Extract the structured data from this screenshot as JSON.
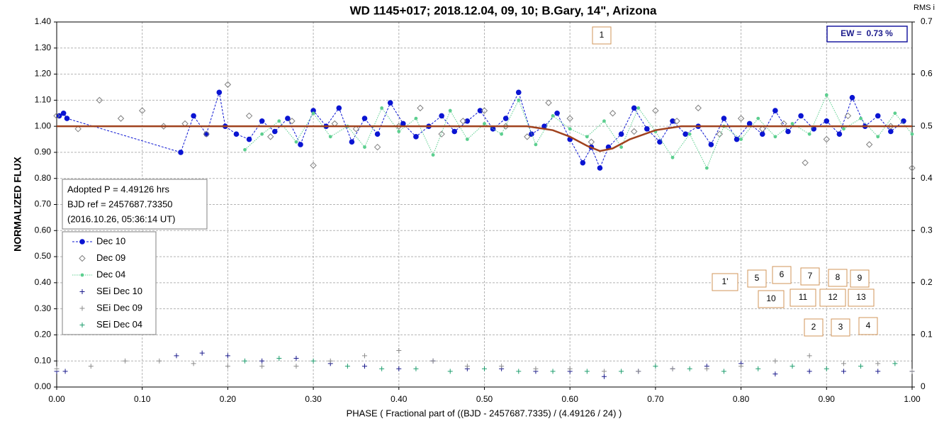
{
  "chart_data": {
    "type": "scatter",
    "title": "WD 1145+017; 2018.12.04, 09, 10; B.Gary, 14\", Arizona",
    "x_label": "PHASE ( Fractional part of ((BJD - 2457687.7335) / (4.49126 / 24) )",
    "y_label": "NORMALIZED FLUX",
    "y2_label": "RMS i",
    "xlim": [
      0,
      1
    ],
    "ylim": [
      0,
      1.4
    ],
    "y2lim": [
      0,
      0.7
    ],
    "grid": true,
    "xticks": [
      {
        "value": 0,
        "label": "0.00"
      },
      {
        "value": 0.1,
        "label": "0.10"
      },
      {
        "value": 0.2,
        "label": "0.20"
      },
      {
        "value": 0.3,
        "label": "0.30"
      },
      {
        "value": 0.4,
        "label": "0.40"
      },
      {
        "value": 0.5,
        "label": "0.50"
      },
      {
        "value": 0.6,
        "label": "0.60"
      },
      {
        "value": 0.7,
        "label": "0.70"
      },
      {
        "value": 0.8,
        "label": "0.80"
      },
      {
        "value": 0.9,
        "label": "0.90"
      },
      {
        "value": 1,
        "label": "1.00"
      }
    ],
    "yticks": [
      {
        "value": 0,
        "label": "0.00"
      },
      {
        "value": 0.1,
        "label": "0.10"
      },
      {
        "value": 0.2,
        "label": "0.20"
      },
      {
        "value": 0.3,
        "label": "0.30"
      },
      {
        "value": 0.4,
        "label": "0.40"
      },
      {
        "value": 0.5,
        "label": "0.50"
      },
      {
        "value": 0.6,
        "label": "0.60"
      },
      {
        "value": 0.7,
        "label": "0.70"
      },
      {
        "value": 0.8,
        "label": "0.80"
      },
      {
        "value": 0.9,
        "label": "0.90"
      },
      {
        "value": 1,
        "label": "1.00"
      },
      {
        "value": 1.1,
        "label": "1.10"
      },
      {
        "value": 1.2,
        "label": "1.20"
      },
      {
        "value": 1.3,
        "label": "1.30"
      },
      {
        "value": 1.4,
        "label": "1.40"
      }
    ],
    "y2ticks": [
      0,
      0.1,
      0.2,
      0.3,
      0.4,
      0.5,
      0.6,
      0.7
    ],
    "info": [
      "Adopted P = 4.49126 hrs",
      "BJD ref = 2457687.73350",
      "(2016.10.26, 05:36:14 UT)"
    ],
    "ew_label": "EW =  0.73 %",
    "annotations": [
      "1",
      "1'",
      "5",
      "6",
      "7",
      "8",
      "9",
      "10",
      "11",
      "12",
      "13",
      "2",
      "3",
      "4"
    ],
    "series": [
      {
        "name": "Dec 10",
        "color": "#0a14d2",
        "marker": "circle",
        "line": "dashed",
        "x": [
          0.003,
          0.008,
          0.012,
          0.145,
          0.16,
          0.175,
          0.19,
          0.197,
          0.21,
          0.225,
          0.24,
          0.255,
          0.27,
          0.285,
          0.3,
          0.315,
          0.33,
          0.345,
          0.36,
          0.375,
          0.39,
          0.405,
          0.42,
          0.435,
          0.45,
          0.465,
          0.48,
          0.495,
          0.51,
          0.525,
          0.54,
          0.555,
          0.57,
          0.585,
          0.6,
          0.615,
          0.625,
          0.635,
          0.645,
          0.66,
          0.675,
          0.69,
          0.705,
          0.72,
          0.735,
          0.75,
          0.765,
          0.78,
          0.795,
          0.81,
          0.825,
          0.84,
          0.855,
          0.87,
          0.885,
          0.9,
          0.915,
          0.93,
          0.945,
          0.96,
          0.975,
          0.99
        ],
        "values": [
          1.04,
          1.05,
          1.03,
          0.9,
          1.04,
          0.97,
          1.13,
          1.0,
          0.97,
          0.95,
          1.02,
          0.98,
          1.03,
          0.93,
          1.06,
          1.0,
          1.07,
          0.94,
          1.03,
          0.97,
          1.09,
          1.01,
          0.96,
          1.0,
          1.04,
          0.98,
          1.02,
          1.06,
          0.99,
          1.03,
          1.13,
          0.97,
          1.0,
          1.05,
          0.95,
          0.86,
          0.92,
          0.84,
          0.92,
          0.97,
          1.07,
          0.99,
          0.94,
          1.02,
          0.97,
          1.0,
          0.93,
          1.03,
          0.95,
          1.01,
          0.97,
          1.06,
          0.98,
          1.04,
          0.99,
          1.02,
          0.97,
          1.11,
          1.0,
          1.04,
          0.98,
          1.02
        ]
      },
      {
        "name": "Dec 09",
        "color": "#808080",
        "marker": "diamond",
        "line": "none",
        "x": [
          0,
          0.025,
          0.05,
          0.075,
          0.1,
          0.125,
          0.15,
          0.175,
          0.2,
          0.225,
          0.25,
          0.275,
          0.3,
          0.325,
          0.35,
          0.375,
          0.4,
          0.425,
          0.45,
          0.475,
          0.5,
          0.525,
          0.55,
          0.575,
          0.6,
          0.625,
          0.65,
          0.675,
          0.7,
          0.725,
          0.75,
          0.775,
          0.8,
          0.825,
          0.85,
          0.875,
          0.9,
          0.925,
          0.95,
          0.975,
          1
        ],
        "values": [
          1.04,
          0.99,
          1.1,
          1.03,
          1.06,
          1.0,
          1.01,
          0.97,
          1.16,
          1.04,
          0.96,
          1.02,
          0.85,
          1.01,
          0.99,
          0.92,
          1.0,
          1.07,
          0.97,
          1.02,
          1.06,
          1.0,
          0.96,
          1.09,
          1.03,
          0.94,
          1.05,
          0.98,
          1.06,
          1.02,
          1.07,
          0.97,
          1.03,
          0.99,
          1.01,
          0.86,
          0.95,
          1.04,
          0.93,
          1.0,
          0.84
        ]
      },
      {
        "name": "Dec 04",
        "color": "#5ccf8f",
        "marker": "small",
        "line": "dotted",
        "x": [
          0.22,
          0.24,
          0.26,
          0.28,
          0.3,
          0.32,
          0.34,
          0.36,
          0.38,
          0.4,
          0.42,
          0.44,
          0.46,
          0.48,
          0.5,
          0.52,
          0.54,
          0.56,
          0.58,
          0.6,
          0.62,
          0.64,
          0.66,
          0.68,
          0.7,
          0.72,
          0.74,
          0.76,
          0.78,
          0.8,
          0.82,
          0.84,
          0.86,
          0.88,
          0.9,
          0.92,
          0.94,
          0.96,
          0.98,
          1
        ],
        "values": [
          0.91,
          0.97,
          1.02,
          0.94,
          1.05,
          0.96,
          1.0,
          0.92,
          1.07,
          0.98,
          1.03,
          0.89,
          1.06,
          0.95,
          1.01,
          0.97,
          1.1,
          0.93,
          1.04,
          0.99,
          0.96,
          1.02,
          0.92,
          1.07,
          0.98,
          0.88,
          0.97,
          0.84,
          1.0,
          0.95,
          1.03,
          0.96,
          1.01,
          0.97,
          1.12,
          0.99,
          1.03,
          0.96,
          1.05,
          0.97
        ]
      },
      {
        "color": "#a0421e",
        "marker": "none",
        "line": "thick",
        "x": [
          0,
          0.55,
          0.58,
          0.6,
          0.62,
          0.635,
          0.65,
          0.67,
          0.7,
          0.73,
          1
        ],
        "values": [
          1,
          1,
          0.985,
          0.96,
          0.925,
          0.905,
          0.915,
          0.95,
          0.985,
          1,
          1
        ]
      },
      {
        "name": "SEi Dec 10",
        "color": "#1a1a8c",
        "marker": "plus",
        "line": "none",
        "x": [
          0,
          0.01,
          0.14,
          0.17,
          0.2,
          0.24,
          0.28,
          0.32,
          0.36,
          0.4,
          0.44,
          0.48,
          0.52,
          0.56,
          0.6,
          0.64,
          0.68,
          0.72,
          0.76,
          0.8,
          0.84,
          0.88,
          0.92,
          0.96,
          1
        ],
        "values": [
          0.06,
          0.06,
          0.12,
          0.13,
          0.12,
          0.1,
          0.11,
          0.09,
          0.08,
          0.07,
          0.1,
          0.07,
          0.07,
          0.06,
          0.06,
          0.04,
          0.06,
          0.07,
          0.08,
          0.09,
          0.05,
          0.06,
          0.06,
          0.06,
          0.06
        ]
      },
      {
        "name": "SEi Dec 09",
        "color": "#8c8c8c",
        "marker": "plus",
        "line": "none",
        "x": [
          0,
          0.04,
          0.08,
          0.12,
          0.16,
          0.2,
          0.24,
          0.28,
          0.32,
          0.36,
          0.4,
          0.44,
          0.48,
          0.52,
          0.56,
          0.6,
          0.64,
          0.68,
          0.72,
          0.76,
          0.8,
          0.84,
          0.88,
          0.92,
          0.96,
          1
        ],
        "values": [
          0.07,
          0.08,
          0.1,
          0.1,
          0.09,
          0.08,
          0.08,
          0.08,
          0.1,
          0.12,
          0.14,
          0.1,
          0.08,
          0.08,
          0.07,
          0.07,
          0.06,
          0.06,
          0.07,
          0.07,
          0.08,
          0.1,
          0.12,
          0.09,
          0.09,
          0.06
        ]
      },
      {
        "name": "SEi Dec 04",
        "color": "#1e9e6e",
        "marker": "plus",
        "line": "none",
        "x": [
          0.22,
          0.26,
          0.3,
          0.34,
          0.38,
          0.42,
          0.46,
          0.5,
          0.54,
          0.58,
          0.62,
          0.66,
          0.7,
          0.74,
          0.78,
          0.82,
          0.86,
          0.9,
          0.94,
          0.98
        ],
        "values": [
          0.1,
          0.11,
          0.1,
          0.08,
          0.07,
          0.07,
          0.06,
          0.07,
          0.06,
          0.06,
          0.06,
          0.06,
          0.08,
          0.07,
          0.06,
          0.07,
          0.08,
          0.07,
          0.08,
          0.09
        ]
      }
    ]
  }
}
